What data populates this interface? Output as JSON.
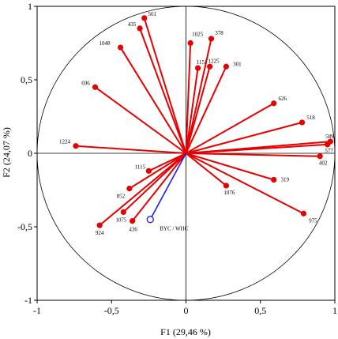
{
  "chart_data": {
    "type": "scatter",
    "subtype": "correlation-circle-biplot",
    "xlabel": "F1 (29,46 %)",
    "ylabel": "F2 (24,07 %)",
    "xlim": [
      -1,
      1
    ],
    "ylim": [
      -1,
      1
    ],
    "x_ticks": [
      "-1",
      "-0,5",
      "0",
      "0,5",
      "1"
    ],
    "y_ticks": [
      "-1",
      "-0,5",
      "0",
      "0,5",
      "1"
    ],
    "grid": false,
    "unit_circle": true,
    "colors": {
      "variables": "#e60000",
      "supplementary": "#1a1aff",
      "axis": "#000000"
    },
    "series": [
      {
        "name": "",
        "color": "#e60000",
        "marker": "filled-circle",
        "points": [
          {
            "label": "561",
            "x": -0.28,
            "y": 0.92
          },
          {
            "label": "435",
            "x": -0.31,
            "y": 0.85
          },
          {
            "label": "1048",
            "x": -0.44,
            "y": 0.72
          },
          {
            "label": "1025",
            "x": 0.03,
            "y": 0.75
          },
          {
            "label": "378",
            "x": 0.17,
            "y": 0.78
          },
          {
            "label": "1151",
            "x": 0.08,
            "y": 0.58
          },
          {
            "label": "1225",
            "x": 0.16,
            "y": 0.59
          },
          {
            "label": "301",
            "x": 0.27,
            "y": 0.59
          },
          {
            "label": "696",
            "x": -0.61,
            "y": 0.45
          },
          {
            "label": "626",
            "x": 0.59,
            "y": 0.34
          },
          {
            "label": "518",
            "x": 0.78,
            "y": 0.21
          },
          {
            "label": "589",
            "x": 0.97,
            "y": 0.08
          },
          {
            "label": "577",
            "x": 0.95,
            "y": 0.06
          },
          {
            "label": "402",
            "x": 0.9,
            "y": -0.02
          },
          {
            "label": "1224",
            "x": -0.74,
            "y": 0.05
          },
          {
            "label": "1115",
            "x": -0.25,
            "y": -0.12
          },
          {
            "label": "852",
            "x": -0.38,
            "y": -0.24
          },
          {
            "label": "1075",
            "x": -0.42,
            "y": -0.4
          },
          {
            "label": "924",
            "x": -0.58,
            "y": -0.49
          },
          {
            "label": "436",
            "x": -0.36,
            "y": -0.46
          },
          {
            "label": "1076",
            "x": 0.27,
            "y": -0.22
          },
          {
            "label": "319",
            "x": 0.59,
            "y": -0.18
          },
          {
            "label": "975",
            "x": 0.79,
            "y": -0.41
          }
        ]
      },
      {
        "name": "",
        "color": "#1a1aff",
        "marker": "hollow-circle",
        "points": [
          {
            "label": "BYC / WHC",
            "x": -0.24,
            "y": -0.45
          }
        ]
      }
    ]
  }
}
